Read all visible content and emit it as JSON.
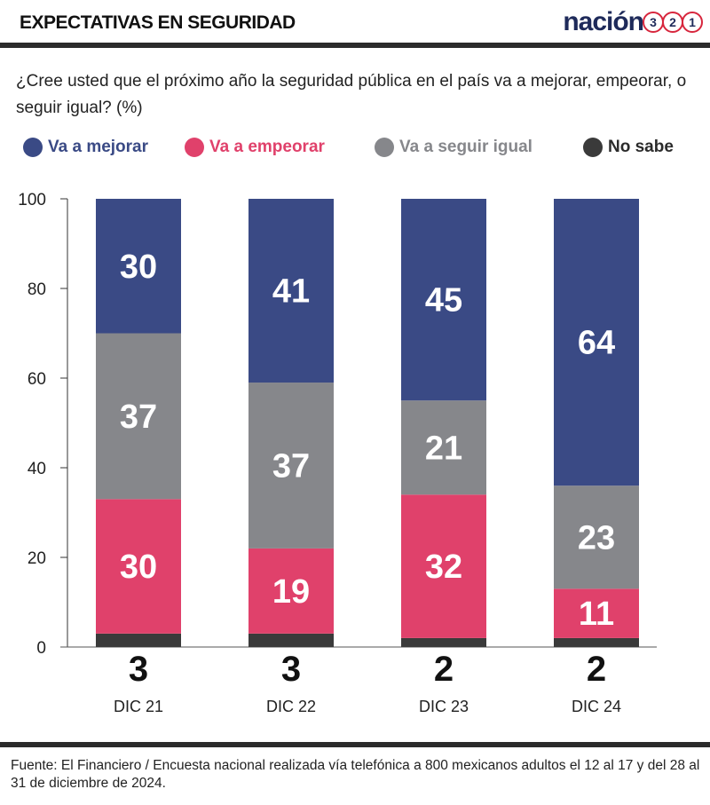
{
  "header": {
    "title": "EXPECTATIVAS EN SEGURIDAD",
    "brand_word": "nación",
    "brand_numbers": [
      "3",
      "2",
      "1"
    ]
  },
  "question": "¿Cree usted que el próximo año la seguridad pública en el país va a mejorar, empeorar, o seguir igual? (%)",
  "colors": {
    "mejorar": "#3a4a85",
    "empeorar": "#e0416b",
    "igual": "#86878b",
    "no_sabe": "#3a3a3a"
  },
  "chart_data": {
    "type": "bar",
    "stacked": true,
    "categories": [
      "DIC 21",
      "DIC 22",
      "DIC 23",
      "DIC 24"
    ],
    "ylim": [
      0,
      100
    ],
    "yticks": [
      0,
      20,
      40,
      60,
      80,
      100
    ],
    "grid": false,
    "legend_position": "top",
    "series": [
      {
        "name": "No sabe",
        "key": "no_sabe",
        "values": [
          3,
          3,
          2,
          2
        ]
      },
      {
        "name": "Va a empeorar",
        "key": "empeorar",
        "values": [
          30,
          19,
          32,
          11
        ]
      },
      {
        "name": "Va a seguir igual",
        "key": "igual",
        "values": [
          37,
          37,
          21,
          23
        ]
      },
      {
        "name": "Va a mejorar",
        "key": "mejorar",
        "values": [
          30,
          41,
          45,
          64
        ]
      }
    ],
    "legend_order": [
      "mejorar",
      "empeorar",
      "igual",
      "no_sabe"
    ]
  },
  "source": "Fuente: El Financiero / Encuesta nacional realizada vía telefónica a 800 mexicanos adultos el 12 al 17 y del 28 al 31 de diciembre de 2024."
}
